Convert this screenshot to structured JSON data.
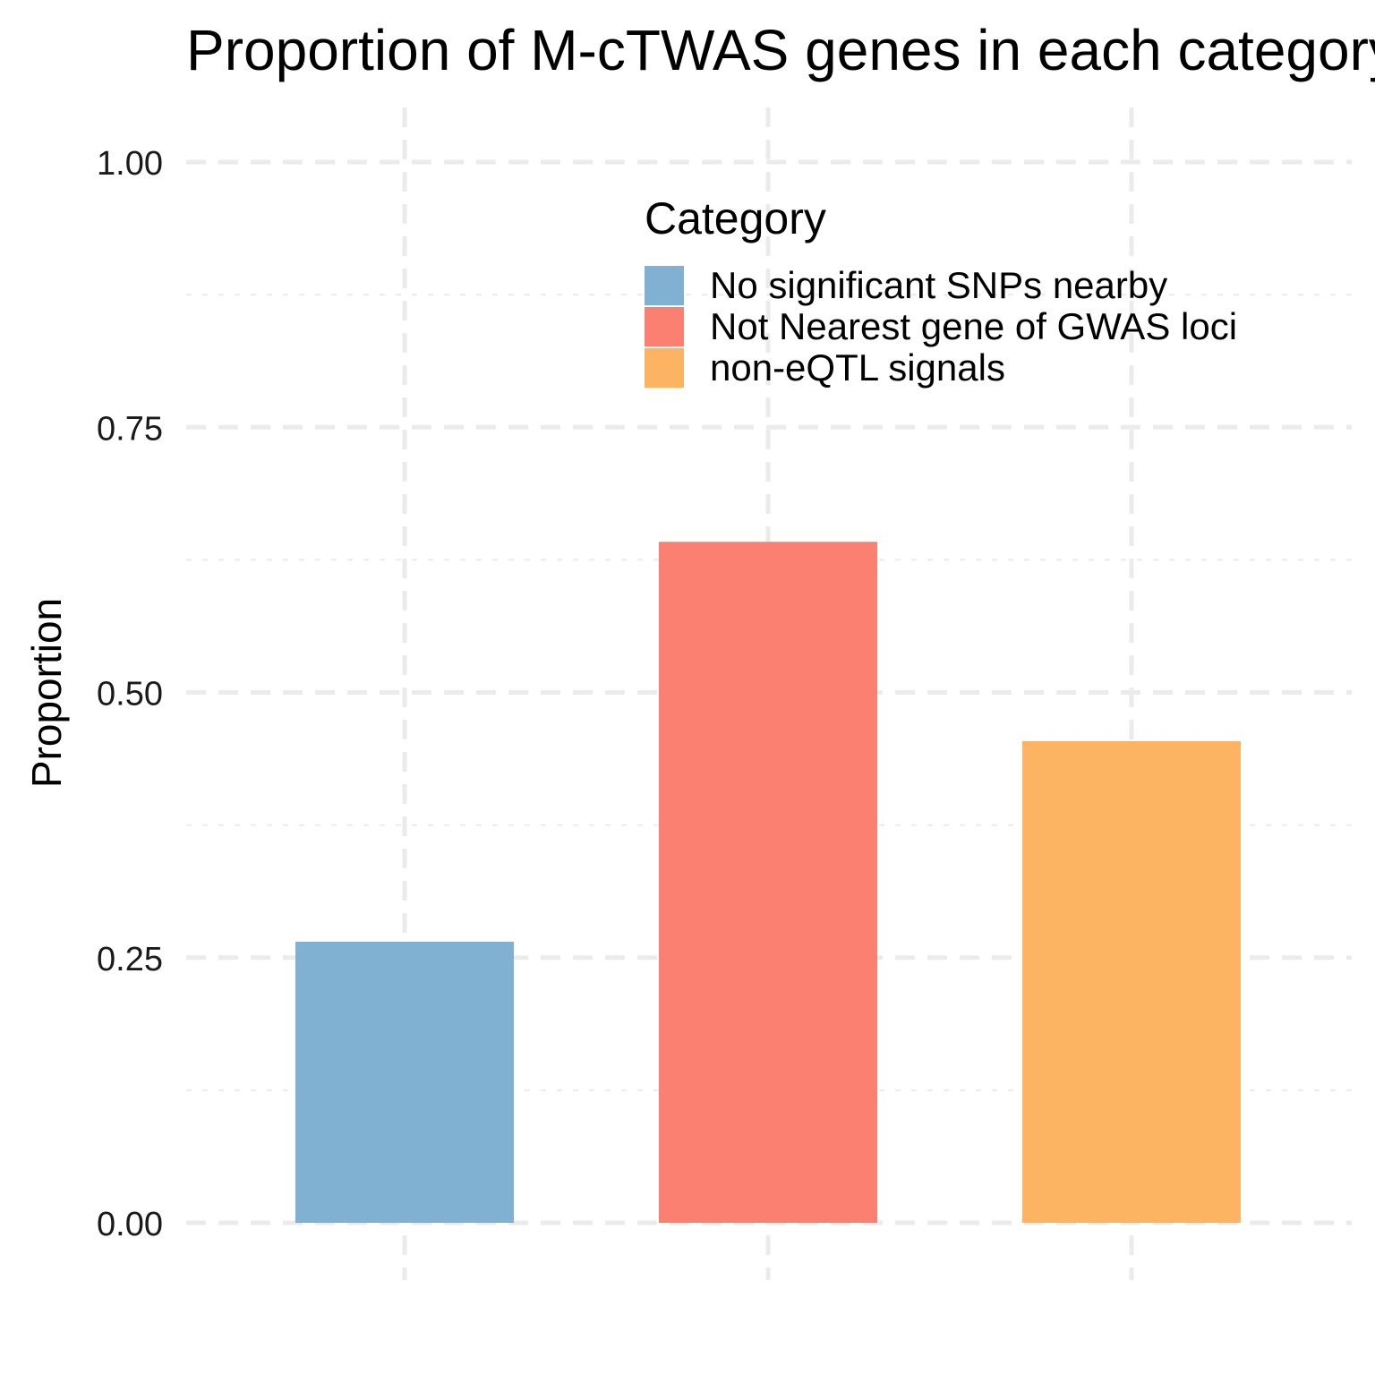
{
  "chart_data": {
    "type": "bar",
    "title": "Proportion of M-cTWAS genes in each category",
    "xlabel": "",
    "ylabel": "Proportion",
    "ylim": [
      0,
      1.05
    ],
    "yticks": [
      "0.00",
      "0.25",
      "0.50",
      "0.75",
      "1.00"
    ],
    "grid": true,
    "legend": {
      "title": "Category",
      "position": "top-right"
    },
    "categories": [
      "No significant SNPs nearby",
      "Not Nearest gene of GWAS loci",
      "non-eQTL signals"
    ],
    "values": [
      0.265,
      0.642,
      0.454
    ],
    "colors": [
      "#80B1D3",
      "#FB8072",
      "#FDB462"
    ]
  }
}
